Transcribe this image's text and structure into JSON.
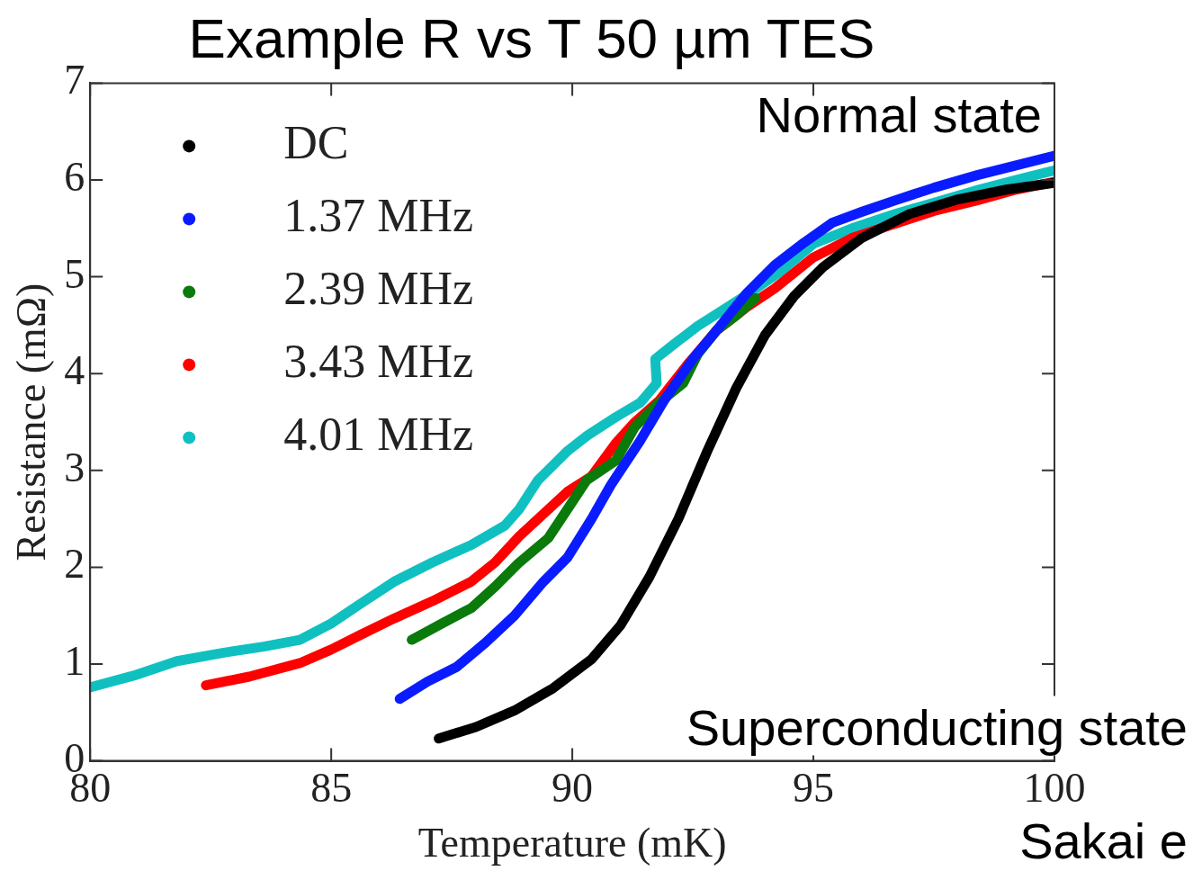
{
  "chart_data": {
    "type": "line",
    "title": "Example R vs T 50 µm TES",
    "xlabel": "Temperature (mK)",
    "ylabel": "Resistance (mΩ)",
    "xlim": [
      80,
      100
    ],
    "xticks": [
      80,
      85,
      90,
      95,
      100
    ],
    "ylim": [
      0,
      7
    ],
    "yticks": [
      0,
      1,
      2,
      3,
      4,
      5,
      6,
      7
    ],
    "grid": false,
    "legend": "top left",
    "marker": "none",
    "series": [
      {
        "name": "DC",
        "color": "#000000",
        "x": [
          87.23,
          88.0,
          88.8,
          89.6,
          90.4,
          91.0,
          91.6,
          92.2,
          92.8,
          93.4,
          94.0,
          94.6,
          95.2,
          96.0,
          97.0,
          98.0,
          99.0,
          100
        ],
        "values": [
          0.23,
          0.35,
          0.52,
          0.75,
          1.05,
          1.4,
          1.9,
          2.5,
          3.2,
          3.85,
          4.4,
          4.8,
          5.1,
          5.4,
          5.65,
          5.8,
          5.9,
          5.97
        ]
      },
      {
        "name": "1.37 MHz",
        "color": "#0a1cff",
        "x": [
          86.42,
          87.0,
          87.6,
          88.2,
          88.8,
          89.4,
          89.9,
          90.4,
          90.8,
          91.4,
          91.9,
          92.5,
          93.0,
          93.6,
          94.2,
          94.8,
          95.4,
          96.0,
          96.7,
          97.5,
          98.4,
          99.2,
          100
        ],
        "values": [
          0.64,
          0.82,
          0.97,
          1.22,
          1.5,
          1.85,
          2.1,
          2.5,
          2.85,
          3.3,
          3.72,
          4.15,
          4.45,
          4.82,
          5.12,
          5.35,
          5.56,
          5.67,
          5.79,
          5.92,
          6.05,
          6.15,
          6.25
        ]
      },
      {
        "name": "2.39 MHz",
        "color": "#0a7a0a",
        "x": [
          86.67,
          87.3,
          87.91,
          88.4,
          88.88,
          89.5,
          89.9,
          90.3,
          90.9,
          91.3,
          91.8,
          92.3,
          92.6,
          93.0,
          93.4,
          93.8
        ],
        "values": [
          1.25,
          1.42,
          1.58,
          1.8,
          2.04,
          2.3,
          2.6,
          2.9,
          3.1,
          3.45,
          3.7,
          3.9,
          4.2,
          4.45,
          4.6,
          4.78
        ]
      },
      {
        "name": "3.43 MHz",
        "color": "#ff0000",
        "x": [
          82.4,
          83.3,
          84.35,
          85.0,
          85.6,
          86.3,
          87.1,
          87.9,
          88.4,
          88.9,
          89.4,
          89.9,
          90.4,
          90.9,
          91.3,
          91.8,
          92.4,
          93.0,
          93.6,
          94.2,
          95.0,
          95.8,
          96.7,
          97.5,
          98.4,
          99.2,
          100
        ],
        "values": [
          0.78,
          0.87,
          1.01,
          1.15,
          1.3,
          1.47,
          1.65,
          1.85,
          2.05,
          2.32,
          2.55,
          2.78,
          2.94,
          3.28,
          3.5,
          3.72,
          4.1,
          4.45,
          4.68,
          4.88,
          5.2,
          5.4,
          5.55,
          5.68,
          5.79,
          5.9,
          5.98
        ]
      },
      {
        "name": "4.01 MHz",
        "color": "#10c0c0",
        "x": [
          80,
          80.9,
          81.8,
          82.8,
          83.6,
          84.35,
          85.0,
          85.6,
          86.3,
          87.1,
          87.9,
          88.6,
          88.9,
          89.29,
          89.9,
          90.31,
          90.9,
          91.41,
          91.75,
          91.72,
          92.1,
          92.6,
          93.1,
          93.64,
          94.3,
          95.0,
          95.8,
          96.7,
          97.6,
          98.43,
          99.2,
          100
        ],
        "values": [
          0.76,
          0.88,
          1.03,
          1.12,
          1.18,
          1.25,
          1.42,
          1.62,
          1.85,
          2.05,
          2.23,
          2.43,
          2.6,
          2.9,
          3.2,
          3.36,
          3.55,
          3.7,
          3.9,
          4.15,
          4.3,
          4.49,
          4.65,
          4.82,
          5.05,
          5.34,
          5.5,
          5.65,
          5.78,
          5.9,
          6.0,
          6.1
        ]
      }
    ],
    "annotations": [
      "Normal state",
      "Superconducting state",
      "Sakai e"
    ]
  }
}
